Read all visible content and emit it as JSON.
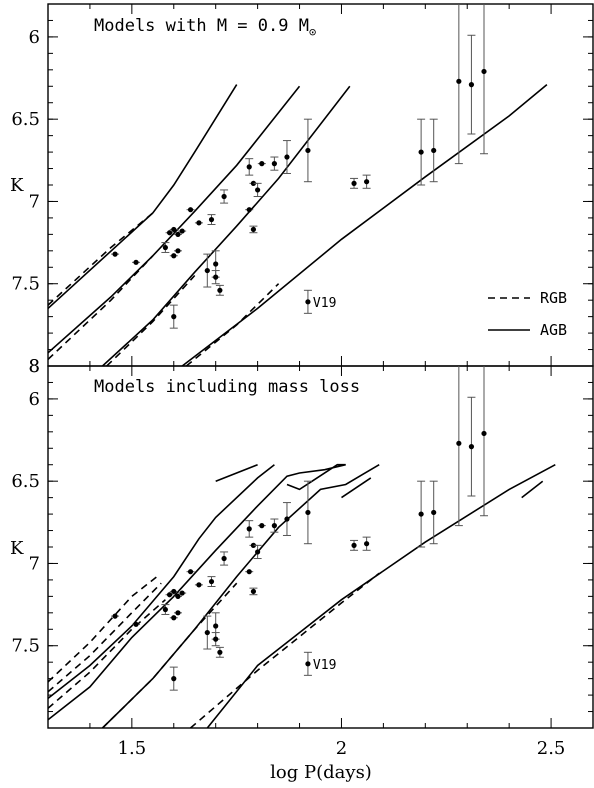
{
  "chart_data": [
    {
      "type": "scatter",
      "title": "Models with M = 0.9 M",
      "title_symbol": "⊙",
      "xlabel": "log P(days)",
      "ylabel": "K",
      "xlim": [
        1.3,
        2.6
      ],
      "ylim": [
        8,
        5.8
      ],
      "y_inverted": true,
      "x_ticks": [
        "1.5",
        "2",
        "2.5"
      ],
      "y_ticks": [
        "6",
        "6.5",
        "7",
        "7.5",
        "8"
      ],
      "legend": [
        {
          "label": "RGB",
          "style": "dashed"
        },
        {
          "label": "AGB",
          "style": "solid"
        }
      ],
      "legend_position": "bottom-right",
      "points": [
        {
          "x": 1.46,
          "y": 7.32,
          "err": 0
        },
        {
          "x": 1.51,
          "y": 7.37,
          "err": 0
        },
        {
          "x": 1.58,
          "y": 7.28,
          "err": 0.03
        },
        {
          "x": 1.59,
          "y": 7.19,
          "err": 0
        },
        {
          "x": 1.6,
          "y": 7.17,
          "err": 0
        },
        {
          "x": 1.6,
          "y": 7.33,
          "err": 0
        },
        {
          "x": 1.61,
          "y": 7.3,
          "err": 0
        },
        {
          "x": 1.61,
          "y": 7.2,
          "err": 0
        },
        {
          "x": 1.62,
          "y": 7.18,
          "err": 0
        },
        {
          "x": 1.6,
          "y": 7.7,
          "err": 0.07
        },
        {
          "x": 1.64,
          "y": 7.05,
          "err": 0
        },
        {
          "x": 1.66,
          "y": 7.13,
          "err": 0
        },
        {
          "x": 1.68,
          "y": 7.42,
          "err": 0.1
        },
        {
          "x": 1.69,
          "y": 7.11,
          "err": 0.03
        },
        {
          "x": 1.7,
          "y": 7.38,
          "err": 0.08
        },
        {
          "x": 1.7,
          "y": 7.46,
          "err": 0.04
        },
        {
          "x": 1.71,
          "y": 7.54,
          "err": 0.03
        },
        {
          "x": 1.72,
          "y": 6.97,
          "err": 0.04
        },
        {
          "x": 1.78,
          "y": 6.79,
          "err": 0.05
        },
        {
          "x": 1.78,
          "y": 7.05,
          "err": 0
        },
        {
          "x": 1.79,
          "y": 6.89,
          "err": 0
        },
        {
          "x": 1.79,
          "y": 7.17,
          "err": 0.02
        },
        {
          "x": 1.8,
          "y": 6.93,
          "err": 0.04
        },
        {
          "x": 1.81,
          "y": 6.77,
          "err": 0
        },
        {
          "x": 1.84,
          "y": 6.77,
          "err": 0.04
        },
        {
          "x": 1.87,
          "y": 6.73,
          "err": 0.1
        },
        {
          "x": 1.92,
          "y": 6.69,
          "err": 0.19
        },
        {
          "x": 1.92,
          "y": 7.61,
          "err": 0.07,
          "label": "V19"
        },
        {
          "x": 2.03,
          "y": 6.89,
          "err": 0.03
        },
        {
          "x": 2.06,
          "y": 6.88,
          "err": 0.04
        },
        {
          "x": 2.19,
          "y": 6.7,
          "err": 0.2
        },
        {
          "x": 2.22,
          "y": 6.69,
          "err": 0.19
        },
        {
          "x": 2.28,
          "y": 6.27,
          "err": 0.5
        },
        {
          "x": 2.31,
          "y": 6.29,
          "err": 0.3
        },
        {
          "x": 2.34,
          "y": 6.21,
          "err": 0.5
        }
      ],
      "lines_solid": [
        [
          [
            1.3,
            7.65
          ],
          [
            1.55,
            7.07
          ],
          [
            1.6,
            6.9
          ],
          [
            1.65,
            6.7
          ],
          [
            1.75,
            6.29
          ]
        ],
        [
          [
            1.3,
            7.92
          ],
          [
            1.45,
            7.58
          ],
          [
            1.55,
            7.33
          ],
          [
            1.65,
            7.06
          ],
          [
            1.75,
            6.78
          ],
          [
            1.9,
            6.3
          ]
        ],
        [
          [
            1.43,
            8.0
          ],
          [
            1.55,
            7.72
          ],
          [
            1.65,
            7.43
          ],
          [
            1.75,
            7.15
          ],
          [
            1.85,
            6.86
          ],
          [
            2.02,
            6.3
          ]
        ],
        [
          [
            1.62,
            8.0
          ],
          [
            1.8,
            7.65
          ],
          [
            2.0,
            7.23
          ],
          [
            2.2,
            6.85
          ],
          [
            2.4,
            6.48
          ],
          [
            2.49,
            6.29
          ]
        ]
      ],
      "lines_dashed": [
        [
          [
            1.3,
            7.63
          ],
          [
            1.45,
            7.28
          ],
          [
            1.55,
            7.07
          ]
        ],
        [
          [
            1.3,
            7.96
          ],
          [
            1.45,
            7.6
          ],
          [
            1.55,
            7.33
          ]
        ],
        [
          [
            1.44,
            8.0
          ],
          [
            1.55,
            7.73
          ],
          [
            1.65,
            7.45
          ]
        ],
        [
          [
            1.63,
            8.0
          ],
          [
            1.75,
            7.75
          ],
          [
            1.85,
            7.5
          ]
        ]
      ]
    },
    {
      "type": "scatter",
      "title": "Models including mass loss",
      "xlabel": "log P(days)",
      "ylabel": "K",
      "xlim": [
        1.3,
        2.6
      ],
      "ylim": [
        8,
        5.8
      ],
      "y_inverted": true,
      "x_ticks": [
        "1.5",
        "2",
        "2.5"
      ],
      "y_ticks": [
        "6",
        "6.5",
        "7",
        "7.5",
        "8"
      ],
      "points": [
        {
          "x": 1.46,
          "y": 7.32,
          "err": 0
        },
        {
          "x": 1.51,
          "y": 7.37,
          "err": 0
        },
        {
          "x": 1.58,
          "y": 7.28,
          "err": 0.03
        },
        {
          "x": 1.59,
          "y": 7.19,
          "err": 0
        },
        {
          "x": 1.6,
          "y": 7.17,
          "err": 0
        },
        {
          "x": 1.6,
          "y": 7.33,
          "err": 0
        },
        {
          "x": 1.61,
          "y": 7.3,
          "err": 0
        },
        {
          "x": 1.61,
          "y": 7.2,
          "err": 0
        },
        {
          "x": 1.62,
          "y": 7.18,
          "err": 0
        },
        {
          "x": 1.6,
          "y": 7.7,
          "err": 0.07
        },
        {
          "x": 1.64,
          "y": 7.05,
          "err": 0
        },
        {
          "x": 1.66,
          "y": 7.13,
          "err": 0
        },
        {
          "x": 1.68,
          "y": 7.42,
          "err": 0.1
        },
        {
          "x": 1.69,
          "y": 7.11,
          "err": 0.03
        },
        {
          "x": 1.7,
          "y": 7.38,
          "err": 0.08
        },
        {
          "x": 1.7,
          "y": 7.46,
          "err": 0.04
        },
        {
          "x": 1.71,
          "y": 7.54,
          "err": 0.03
        },
        {
          "x": 1.72,
          "y": 6.97,
          "err": 0.04
        },
        {
          "x": 1.78,
          "y": 6.79,
          "err": 0.05
        },
        {
          "x": 1.78,
          "y": 7.05,
          "err": 0
        },
        {
          "x": 1.79,
          "y": 6.89,
          "err": 0
        },
        {
          "x": 1.79,
          "y": 7.17,
          "err": 0.02
        },
        {
          "x": 1.8,
          "y": 6.93,
          "err": 0.04
        },
        {
          "x": 1.81,
          "y": 6.77,
          "err": 0
        },
        {
          "x": 1.84,
          "y": 6.77,
          "err": 0.04
        },
        {
          "x": 1.87,
          "y": 6.73,
          "err": 0.1
        },
        {
          "x": 1.92,
          "y": 6.69,
          "err": 0.19
        },
        {
          "x": 1.92,
          "y": 7.61,
          "err": 0.07,
          "label": "V19"
        },
        {
          "x": 2.03,
          "y": 6.89,
          "err": 0.03
        },
        {
          "x": 2.06,
          "y": 6.88,
          "err": 0.04
        },
        {
          "x": 2.19,
          "y": 6.7,
          "err": 0.2
        },
        {
          "x": 2.22,
          "y": 6.69,
          "err": 0.19
        },
        {
          "x": 2.28,
          "y": 6.27,
          "err": 0.5
        },
        {
          "x": 2.31,
          "y": 6.29,
          "err": 0.3
        },
        {
          "x": 2.34,
          "y": 6.21,
          "err": 0.5
        }
      ],
      "lines_solid": [
        [
          [
            1.3,
            7.82
          ],
          [
            1.4,
            7.62
          ],
          [
            1.5,
            7.38
          ],
          [
            1.6,
            7.08
          ],
          [
            1.66,
            6.85
          ],
          [
            1.7,
            6.72
          ],
          [
            1.8,
            6.48
          ],
          [
            1.84,
            6.4
          ]
        ],
        [
          [
            1.7,
            6.5
          ],
          [
            1.8,
            6.4
          ]
        ],
        [
          [
            1.3,
            7.95
          ],
          [
            1.4,
            7.75
          ],
          [
            1.5,
            7.45
          ],
          [
            1.6,
            7.2
          ],
          [
            1.7,
            6.92
          ],
          [
            1.8,
            6.65
          ],
          [
            1.87,
            6.47
          ],
          [
            1.9,
            6.45
          ],
          [
            1.96,
            6.43
          ],
          [
            2.01,
            6.4
          ],
          [
            1.99,
            6.4
          ],
          [
            1.93,
            6.5
          ],
          [
            1.9,
            6.55
          ],
          [
            1.87,
            6.52
          ]
        ],
        [
          [
            1.43,
            8.0
          ],
          [
            1.55,
            7.7
          ],
          [
            1.65,
            7.4
          ],
          [
            1.75,
            7.08
          ],
          [
            1.85,
            6.78
          ],
          [
            1.95,
            6.55
          ],
          [
            2.01,
            6.52
          ],
          [
            2.05,
            6.46
          ],
          [
            2.09,
            6.4
          ]
        ],
        [
          [
            2.0,
            6.6
          ],
          [
            2.07,
            6.48
          ]
        ],
        [
          [
            1.68,
            8.0
          ],
          [
            1.8,
            7.62
          ],
          [
            2.0,
            7.22
          ],
          [
            2.2,
            6.87
          ],
          [
            2.4,
            6.55
          ],
          [
            2.51,
            6.4
          ]
        ],
        [
          [
            2.43,
            6.6
          ],
          [
            2.48,
            6.5
          ]
        ]
      ],
      "lines_dashed": [
        [
          [
            1.3,
            7.72
          ],
          [
            1.4,
            7.48
          ],
          [
            1.5,
            7.2
          ],
          [
            1.56,
            7.08
          ]
        ],
        [
          [
            1.3,
            7.78
          ],
          [
            1.4,
            7.56
          ],
          [
            1.5,
            7.3
          ],
          [
            1.57,
            7.12
          ]
        ],
        [
          [
            1.3,
            7.88
          ],
          [
            1.4,
            7.66
          ],
          [
            1.5,
            7.4
          ],
          [
            1.58,
            7.22
          ]
        ],
        [
          [
            1.43,
            8.0
          ],
          [
            1.55,
            7.7
          ],
          [
            1.65,
            7.4
          ],
          [
            1.75,
            7.12
          ]
        ],
        [
          [
            1.64,
            8.0
          ],
          [
            1.8,
            7.65
          ],
          [
            2.0,
            7.24
          ],
          [
            2.09,
            7.06
          ]
        ]
      ]
    }
  ]
}
